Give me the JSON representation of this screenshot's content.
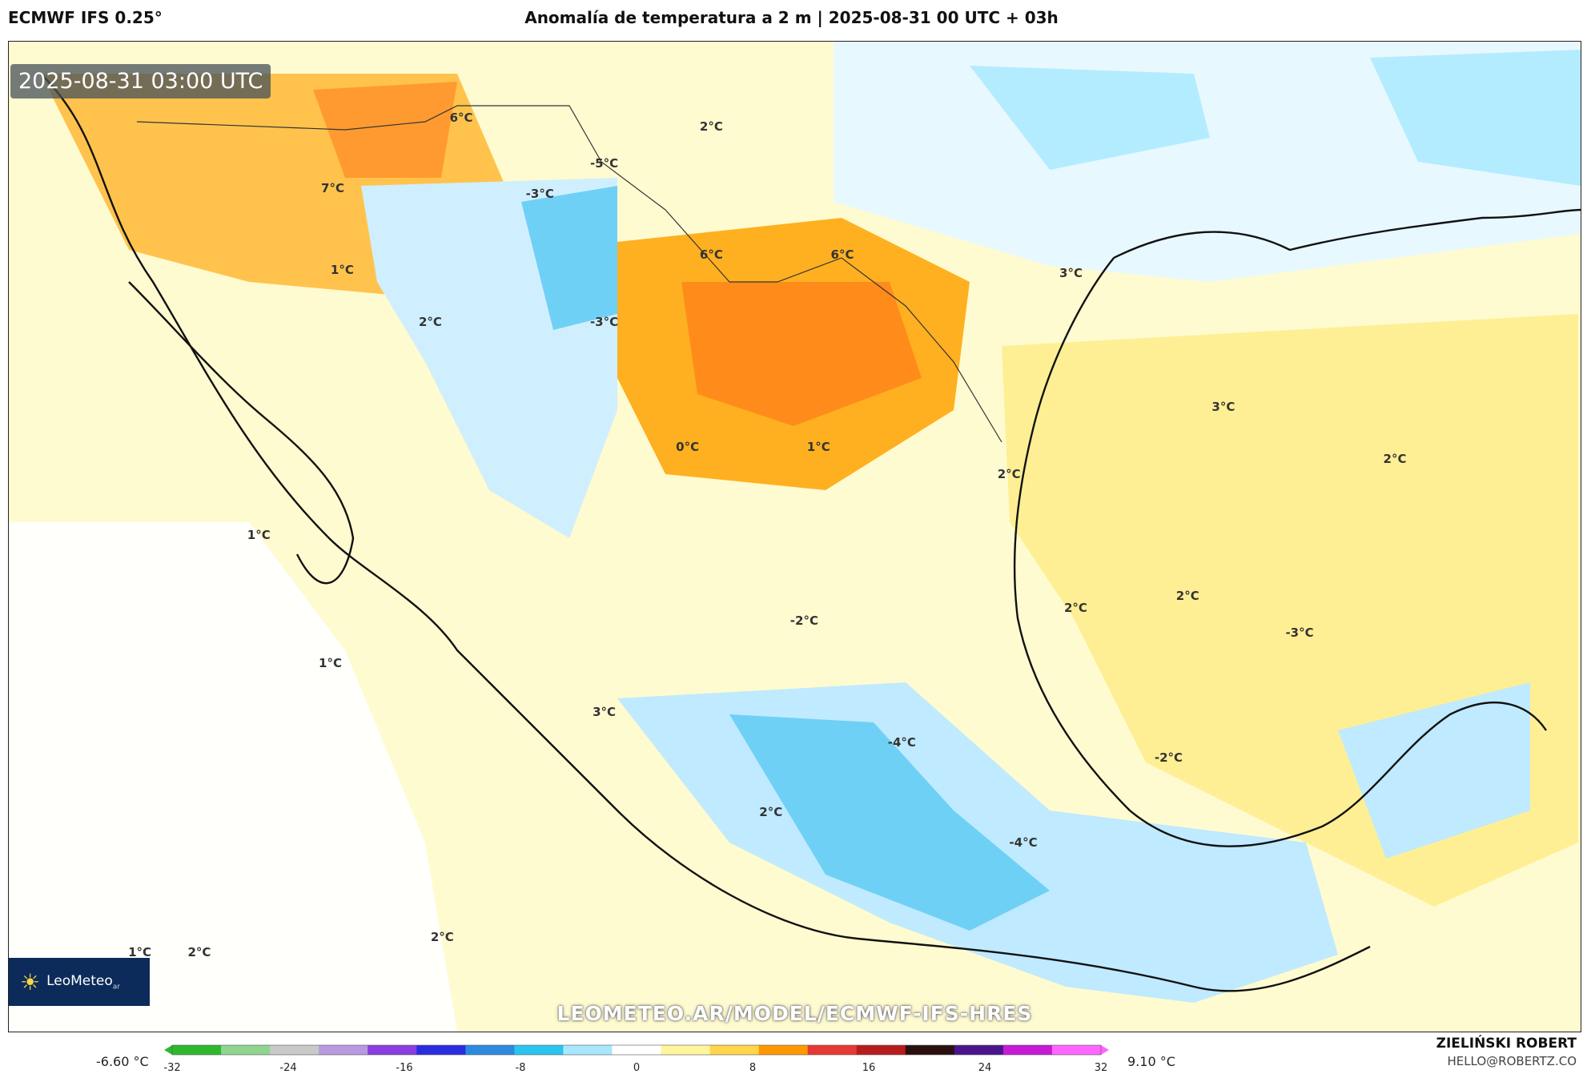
{
  "header": {
    "model": "ECMWF IFS 0.25°",
    "title": "Anomalía de temperatura a 2 m | 2025-08-31 00 UTC + 03h"
  },
  "map": {
    "valid_time": "2025-08-31 03:00 UTC",
    "watermark": "LEOMETEO.AR/MODEL/ECMWF-IFS-HRES",
    "logo": {
      "name": "LeoMeteo",
      "suffix": "ar",
      "icon": "sun-icon"
    },
    "contour_labels": [
      {
        "text": "6°C",
        "lon": -112.0,
        "lat": 35.5
      },
      {
        "text": "2°C",
        "lon": -101.5,
        "lat": 35.2
      },
      {
        "text": "7°C",
        "lon": -117.4,
        "lat": 33.2
      },
      {
        "text": "-5°C",
        "lon": -106.0,
        "lat": 34.0
      },
      {
        "text": "-3°C",
        "lon": -108.7,
        "lat": 33.0
      },
      {
        "text": "1°C",
        "lon": -117.0,
        "lat": 30.5
      },
      {
        "text": "6°C",
        "lon": -101.5,
        "lat": 31.0
      },
      {
        "text": "6°C",
        "lon": -96.0,
        "lat": 31.0
      },
      {
        "text": "3°C",
        "lon": -86.4,
        "lat": 30.4
      },
      {
        "text": "2°C",
        "lon": -113.3,
        "lat": 28.8
      },
      {
        "text": "-3°C",
        "lon": -106.0,
        "lat": 28.8
      },
      {
        "text": "3°C",
        "lon": -80.0,
        "lat": 26.0
      },
      {
        "text": "0°C",
        "lon": -102.5,
        "lat": 24.7
      },
      {
        "text": "1°C",
        "lon": -97.0,
        "lat": 24.7
      },
      {
        "text": "2°C",
        "lon": -89.0,
        "lat": 23.8
      },
      {
        "text": "2°C",
        "lon": -72.8,
        "lat": 24.3
      },
      {
        "text": "1°C",
        "lon": -120.5,
        "lat": 21.8
      },
      {
        "text": "2°C",
        "lon": -81.5,
        "lat": 19.8
      },
      {
        "text": "2°C",
        "lon": -86.2,
        "lat": 19.4
      },
      {
        "text": "-2°C",
        "lon": -97.6,
        "lat": 19.0
      },
      {
        "text": "-3°C",
        "lon": -76.8,
        "lat": 18.6
      },
      {
        "text": "1°C",
        "lon": -117.5,
        "lat": 17.6
      },
      {
        "text": "3°C",
        "lon": -106.0,
        "lat": 16.0
      },
      {
        "text": "-4°C",
        "lon": -93.5,
        "lat": 15.0
      },
      {
        "text": "-2°C",
        "lon": -82.3,
        "lat": 14.5
      },
      {
        "text": "2°C",
        "lon": -99.0,
        "lat": 12.7
      },
      {
        "text": "-4°C",
        "lon": -88.4,
        "lat": 11.7
      },
      {
        "text": "2°C",
        "lon": -112.8,
        "lat": 8.6
      },
      {
        "text": "1°C",
        "lon": -125.5,
        "lat": 8.1
      },
      {
        "text": "2°C",
        "lon": -123.0,
        "lat": 8.1
      }
    ]
  },
  "colorbar": {
    "min_label": "-6.60 °C",
    "max_label": "9.10 °C",
    "ticks": [
      "-32",
      "-24",
      "-16",
      "-8",
      "0",
      "8",
      "16",
      "24",
      "32"
    ],
    "range": [
      -32,
      32
    ],
    "colors": [
      "#2eb82e",
      "#8fd48f",
      "#c9c9c9",
      "#b79ae0",
      "#8a3ee0",
      "#2b2be0",
      "#2b8ae0",
      "#2bc4f0",
      "#a8e8ff",
      "#ffffff",
      "#fff59d",
      "#ffd54a",
      "#ff9800",
      "#e53935",
      "#b71c1c",
      "#2a0f0f",
      "#4a148c",
      "#c51bd6",
      "#ff66ff"
    ]
  },
  "author": {
    "name": "ZIELIŃSKI ROBERT",
    "email": "HELLO@ROBERTZ.CO"
  }
}
